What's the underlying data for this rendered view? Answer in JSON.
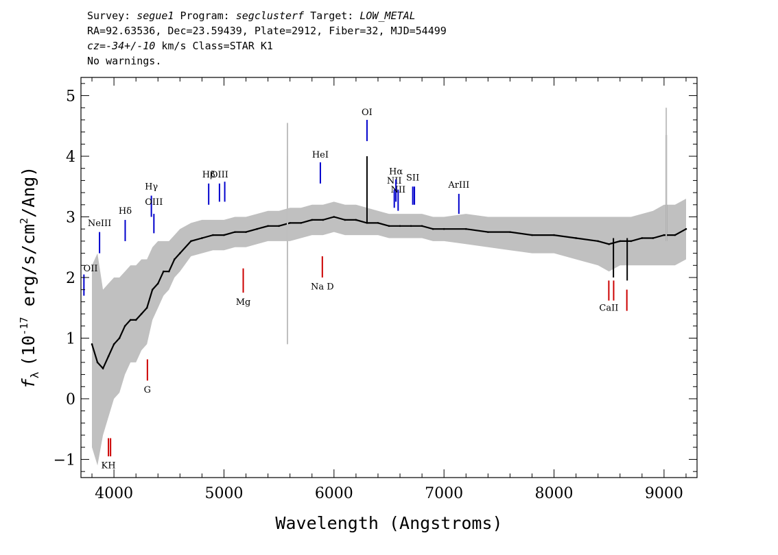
{
  "header": {
    "line1": {
      "survey_label": "Survey:",
      "survey": "segue1",
      "program_label": "Program:",
      "program": "segclusterf",
      "target_label": "Target:",
      "target": "LOW_METAL"
    },
    "line2": "RA=92.63536, Dec=23.59439, Plate=2912, Fiber=32, MJD=54499",
    "line3": {
      "cz_label": "cz=",
      "cz_value": "-34+/-10",
      "rest": "km/s Class=STAR K1"
    },
    "line4": "No warnings."
  },
  "chart_data": {
    "type": "line",
    "xlabel": "Wavelength (Angstroms)",
    "ylabel_parts": {
      "symbol": "f",
      "sub": "λ",
      "pre": "(10",
      "exp": "-17",
      "mid": " erg/s/cm",
      "exp2": "2",
      "post": "/Ang)"
    },
    "xlim": [
      3700,
      9300
    ],
    "ylim": [
      -1.3,
      5.3
    ],
    "xticks": [
      4000,
      5000,
      6000,
      7000,
      8000,
      9000
    ],
    "xtick_labels": [
      "4000",
      "5000",
      "6000",
      "7000",
      "8000",
      "9000"
    ],
    "yticks": [
      -1,
      0,
      1,
      2,
      3,
      4,
      5
    ],
    "ytick_labels": [
      "−1",
      "0",
      "1",
      "2",
      "3",
      "4",
      "5"
    ],
    "series": [
      {
        "role": "flux",
        "color": "#000000",
        "x": [
          3800,
          3850,
          3900,
          3950,
          4000,
          4050,
          4100,
          4150,
          4200,
          4250,
          4300,
          4350,
          4400,
          4450,
          4500,
          4550,
          4600,
          4700,
          4800,
          4900,
          5000,
          5100,
          5200,
          5300,
          5400,
          5500,
          5600,
          5700,
          5800,
          5900,
          6000,
          6100,
          6200,
          6300,
          6400,
          6500,
          6600,
          6700,
          6800,
          6900,
          7000,
          7200,
          7400,
          7600,
          7800,
          8000,
          8200,
          8400,
          8500,
          8600,
          8700,
          8800,
          8900,
          9000,
          9100,
          9200
        ],
        "y": [
          0.9,
          0.6,
          0.5,
          0.7,
          0.9,
          1.0,
          1.2,
          1.3,
          1.3,
          1.4,
          1.5,
          1.8,
          1.9,
          2.1,
          2.1,
          2.3,
          2.4,
          2.6,
          2.65,
          2.7,
          2.7,
          2.75,
          2.75,
          2.8,
          2.85,
          2.85,
          2.9,
          2.9,
          2.95,
          2.95,
          3.0,
          2.95,
          2.95,
          2.9,
          2.9,
          2.85,
          2.85,
          2.85,
          2.85,
          2.8,
          2.8,
          2.8,
          2.75,
          2.75,
          2.7,
          2.7,
          2.65,
          2.6,
          2.55,
          2.6,
          2.6,
          2.65,
          2.65,
          2.7,
          2.7,
          2.8
        ]
      },
      {
        "role": "error",
        "color": "#c0c0c0",
        "x": [
          3800,
          3850,
          3900,
          3950,
          4000,
          4050,
          4100,
          4150,
          4200,
          4250,
          4300,
          4350,
          4400,
          4450,
          4500,
          4550,
          4600,
          4700,
          4800,
          4900,
          5000,
          5100,
          5200,
          5300,
          5400,
          5500,
          5600,
          5700,
          5800,
          5900,
          6000,
          6100,
          6200,
          6300,
          6400,
          6500,
          6600,
          6700,
          6800,
          6900,
          7000,
          7200,
          7400,
          7600,
          7800,
          8000,
          8200,
          8400,
          8500,
          8600,
          8700,
          8800,
          8900,
          9000,
          9100,
          9200
        ],
        "y_low": [
          -0.8,
          -1.1,
          -0.6,
          -0.3,
          0.0,
          0.1,
          0.4,
          0.6,
          0.6,
          0.8,
          0.9,
          1.3,
          1.5,
          1.7,
          1.8,
          2.0,
          2.1,
          2.35,
          2.4,
          2.45,
          2.45,
          2.5,
          2.5,
          2.55,
          2.6,
          2.6,
          2.6,
          2.65,
          2.7,
          2.7,
          2.75,
          2.7,
          2.7,
          2.7,
          2.7,
          2.65,
          2.65,
          2.65,
          2.65,
          2.6,
          2.6,
          2.55,
          2.5,
          2.45,
          2.4,
          2.4,
          2.3,
          2.2,
          2.1,
          2.2,
          2.2,
          2.2,
          2.2,
          2.2,
          2.2,
          2.3
        ],
        "y_high": [
          2.2,
          2.4,
          1.8,
          1.9,
          2.0,
          2.0,
          2.1,
          2.2,
          2.2,
          2.3,
          2.3,
          2.5,
          2.6,
          2.6,
          2.6,
          2.7,
          2.8,
          2.9,
          2.95,
          2.95,
          2.95,
          3.0,
          3.0,
          3.05,
          3.1,
          3.1,
          3.15,
          3.15,
          3.2,
          3.2,
          3.25,
          3.2,
          3.2,
          3.15,
          3.1,
          3.05,
          3.05,
          3.05,
          3.05,
          3.0,
          3.0,
          3.05,
          3.0,
          3.0,
          3.0,
          3.0,
          3.0,
          3.0,
          3.0,
          3.0,
          3.0,
          3.05,
          3.1,
          3.2,
          3.2,
          3.3
        ]
      }
    ],
    "spikes": [
      {
        "x": 5577,
        "y_from": 2.2,
        "y_to": 4.0,
        "color": "#000000"
      },
      {
        "x": 6300,
        "y_from": 2.9,
        "y_to": 4.0,
        "color": "#000000"
      },
      {
        "x": 9020,
        "y_from": 2.6,
        "y_to": 4.35,
        "color": "#000000"
      },
      {
        "x": 5577,
        "y_from": 0.9,
        "y_to": 4.55,
        "color": "#c0c0c0"
      },
      {
        "x": 9020,
        "y_from": 2.4,
        "y_to": 4.8,
        "color": "#c0c0c0"
      },
      {
        "x": 8540,
        "y_from": 2.0,
        "y_to": 2.65,
        "color": "#000000"
      },
      {
        "x": 8665,
        "y_from": 1.95,
        "y_to": 2.65,
        "color": "#000000"
      }
    ],
    "emission_lines": [
      {
        "label": "NeIII",
        "x": 3869,
        "y_bottom": 2.4,
        "y_top": 2.75,
        "label_y": 2.85
      },
      {
        "label": "Hδ",
        "x": 4102,
        "y_bottom": 2.6,
        "y_top": 2.95,
        "label_y": 3.05
      },
      {
        "label": "Hγ",
        "x": 4340,
        "y_bottom": 3.0,
        "y_top": 3.35,
        "label_y": 3.45
      },
      {
        "label": "OIII",
        "x": 4363,
        "y_bottom": 2.73,
        "y_top": 3.05,
        "label_y": 3.2
      },
      {
        "label": "Hβ",
        "x": 4861,
        "y_bottom": 3.2,
        "y_top": 3.55,
        "label_y": 3.65
      },
      {
        "label": "OIII",
        "x": 4959,
        "y_bottom": 3.25,
        "y_top": 3.55,
        "label_y": 3.65
      },
      {
        "label": "OIII",
        "x": 5007,
        "y_bottom": 3.25,
        "y_top": 3.58,
        "label_y": -99
      },
      {
        "label": "HeI",
        "x": 5876,
        "y_bottom": 3.55,
        "y_top": 3.9,
        "label_y": 3.98
      },
      {
        "label": "OI",
        "x": 6300,
        "y_bottom": 4.25,
        "y_top": 4.6,
        "label_y": 4.68
      },
      {
        "label": "NII",
        "x": 6548,
        "y_bottom": 3.15,
        "y_top": 3.45,
        "label_y": 3.55
      },
      {
        "label": "Hα",
        "x": 6563,
        "y_bottom": 3.25,
        "y_top": 3.62,
        "label_y": 3.7
      },
      {
        "label": "NII",
        "x": 6583,
        "y_bottom": 3.1,
        "y_top": 3.45,
        "label_y": 3.4
      },
      {
        "label": "SII",
        "x": 6716,
        "y_bottom": 3.2,
        "y_top": 3.5,
        "label_y": 3.6
      },
      {
        "label": "SII",
        "x": 6731,
        "y_bottom": 3.2,
        "y_top": 3.5,
        "label_y": -99
      },
      {
        "label": "ArIII",
        "x": 7135,
        "y_bottom": 3.05,
        "y_top": 3.38,
        "label_y": 3.48
      },
      {
        "label": "OII",
        "x": 3727,
        "y_bottom": 1.7,
        "y_top": 2.05,
        "label_y": 2.1
      }
    ],
    "absorption_lines": [
      {
        "label": "Mg",
        "x": 5175,
        "y_top": 2.15,
        "y_bottom": 1.75,
        "label_y": 1.55
      },
      {
        "label": "Na D",
        "x": 5894,
        "y_top": 2.35,
        "y_bottom": 2.0,
        "label_y": 1.8
      },
      {
        "label": "G",
        "x": 4304,
        "y_top": 0.65,
        "y_bottom": 0.3,
        "label_y": 0.1
      },
      {
        "label": "KH",
        "x": 3950,
        "y_top": -0.65,
        "y_bottom": -0.95,
        "label_y": -1.15
      },
      {
        "label": "",
        "x": 3969,
        "y_top": -0.65,
        "y_bottom": -0.95,
        "label_y": -99
      },
      {
        "label": "CaII",
        "x": 8498,
        "y_top": 1.95,
        "y_bottom": 1.62,
        "label_y": 1.45
      },
      {
        "label": "",
        "x": 8542,
        "y_top": 1.95,
        "y_bottom": 1.62,
        "label_y": -99
      },
      {
        "label": "",
        "x": 8662,
        "y_top": 1.8,
        "y_bottom": 1.45,
        "label_y": -99
      }
    ],
    "colors": {
      "emission": "#0000cc",
      "absorption": "#cc0000",
      "flux": "#000000",
      "error": "#c0c0c0"
    }
  }
}
